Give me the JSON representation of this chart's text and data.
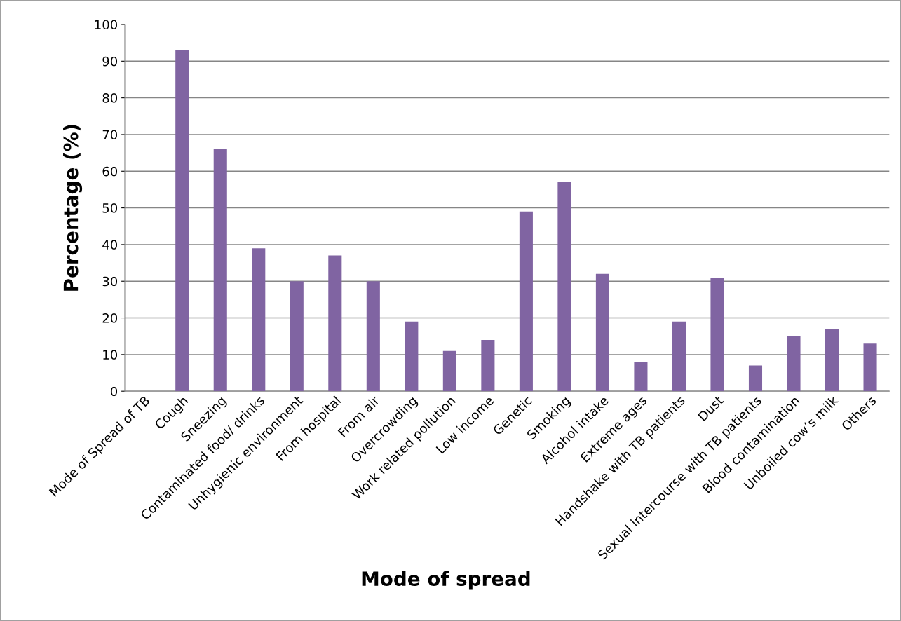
{
  "chart_data": {
    "type": "bar",
    "xlabel": "Mode of spread",
    "ylabel": "Percentage (%)",
    "categories": [
      "Mode of Spread of TB",
      "Cough",
      "Sneezing",
      "Contaminated food/ drinks",
      "Unhygienic environment",
      "From hospital",
      "From air",
      "Overcrowding",
      "Work related pollution",
      "Low income",
      "Genetic",
      "Smoking",
      "Alcohol intake",
      "Extreme ages",
      "Handshake with TB patients",
      "Dust",
      "Sexual intercourse with TB patients",
      "Blood contamination",
      "Unboiled cow’s milk",
      "Others"
    ],
    "values": [
      null,
      93,
      66,
      39,
      30,
      37,
      30,
      19,
      11,
      14,
      49,
      57,
      32,
      8,
      19,
      31,
      7,
      15,
      17,
      13
    ],
    "color": "#8064a2",
    "ylim": [
      0,
      100
    ],
    "yticks": [
      0,
      10,
      20,
      30,
      40,
      50,
      60,
      70,
      80,
      90,
      100
    ],
    "grid": "y",
    "legend": false
  }
}
